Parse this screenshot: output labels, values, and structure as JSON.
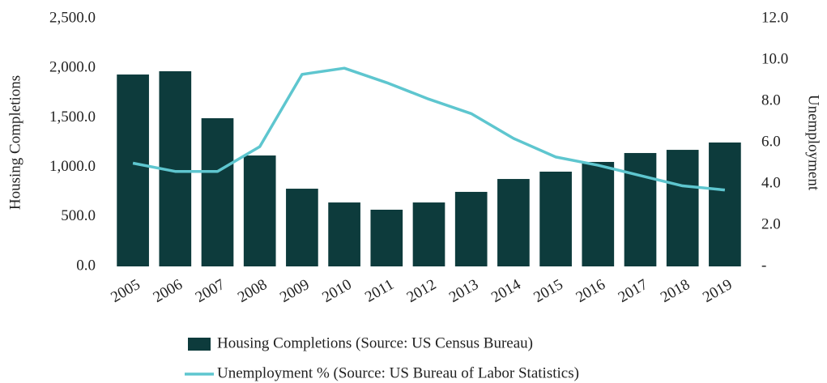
{
  "chart_data": {
    "type": "bar_line",
    "categories": [
      "2005",
      "2006",
      "2007",
      "2008",
      "2009",
      "2010",
      "2011",
      "2012",
      "2013",
      "2014",
      "2015",
      "2016",
      "2017",
      "2018",
      "2019"
    ],
    "series": [
      {
        "name": "Housing Completions (Source: US Census Bureau)",
        "type": "bar",
        "color": "#0d3b3c",
        "values": [
          1936,
          1969,
          1495,
          1119,
          784,
          645,
          572,
          645,
          752,
          882,
          956,
          1054,
          1144,
          1176,
          1250
        ]
      },
      {
        "name": "Unemployment % (Source: US Bureau of Labor Statistics)",
        "type": "line",
        "axis": "y2",
        "color": "#5ec6cf",
        "values": [
          5.0,
          4.6,
          4.6,
          5.8,
          9.3,
          9.6,
          8.9,
          8.1,
          7.4,
          6.2,
          5.3,
          4.9,
          4.4,
          3.9,
          3.7
        ]
      }
    ],
    "ylabel": "Housing Completions",
    "y2label": "Unemployment",
    "ylim": [
      0,
      2500
    ],
    "yticks": [
      {
        "value": 0,
        "label": "0.0"
      },
      {
        "value": 500,
        "label": "500.0"
      },
      {
        "value": 1000,
        "label": "1,000.0"
      },
      {
        "value": 1500,
        "label": "1,500.0"
      },
      {
        "value": 2000,
        "label": "2,000.0"
      },
      {
        "value": 2500,
        "label": "2,500.0"
      }
    ],
    "y2lim": [
      0,
      12
    ],
    "y2ticks": [
      {
        "value": 0,
        "label": "-"
      },
      {
        "value": 2,
        "label": "2.0"
      },
      {
        "value": 4,
        "label": "4.0"
      },
      {
        "value": 6,
        "label": "6.0"
      },
      {
        "value": 8,
        "label": "8.0"
      },
      {
        "value": 10,
        "label": "10.0"
      },
      {
        "value": 12,
        "label": "12.0"
      }
    ],
    "grid": false,
    "legend": "bottom"
  }
}
